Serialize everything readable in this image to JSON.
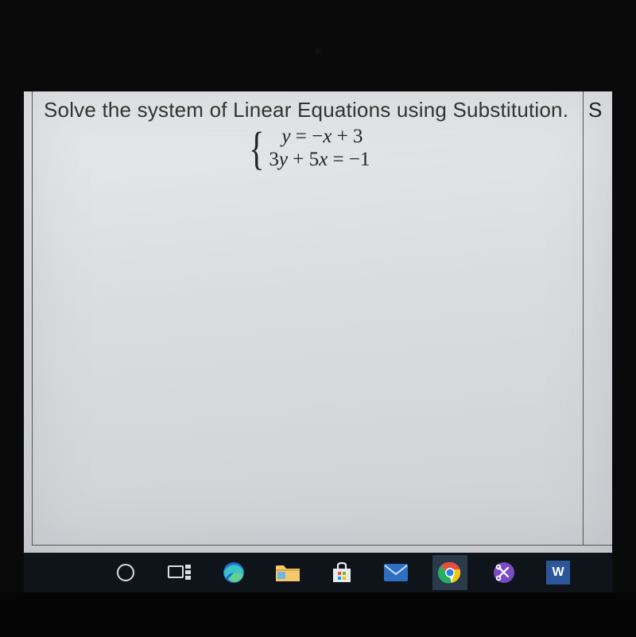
{
  "worksheet": {
    "instruction": "Solve the system of Linear Equations using Substitution.",
    "equation1_html": "<span class='rm'> </span>y <span class='rm'>= −</span>x <span class='rm'>+ 3</span>",
    "equation2_html": "<span class='rm'>3</span>y <span class='rm'>+ 5</span>x <span class='rm'>= −1</span>",
    "right_cell_letter": "S"
  },
  "taskbar": {
    "background": "#0e1419",
    "items": [
      {
        "name": "cortana-circle-icon",
        "type": "svg-circle",
        "stroke": "#d9dde2"
      },
      {
        "name": "task-view-icon",
        "type": "svg-taskview",
        "stroke": "#d9dde2"
      },
      {
        "name": "edge-browser-icon",
        "type": "svg-edge"
      },
      {
        "name": "file-explorer-icon",
        "type": "svg-folder"
      },
      {
        "name": "microsoft-store-icon",
        "type": "svg-store"
      },
      {
        "name": "mail-icon",
        "type": "svg-mail"
      },
      {
        "name": "chrome-browser-icon",
        "type": "svg-chrome",
        "active": true
      },
      {
        "name": "snip-sketch-icon",
        "type": "svg-snip"
      },
      {
        "name": "word-icon",
        "type": "word-tile",
        "letter": "W"
      }
    ]
  },
  "colors": {
    "page_bg": "#0a0a0a",
    "paper_top": "#e8e9eb",
    "paper_bottom": "#cfd0d4",
    "cell_border": "#555555",
    "text": "#222222",
    "edge_teal": "#39c2c9",
    "edge_blue": "#1f6fd0",
    "folder": "#f5c869",
    "store_bag": "#e8eaee",
    "mail_blue": "#2e6fc4",
    "chrome_red": "#e74c3c",
    "chrome_yellow": "#f1c40f",
    "chrome_green": "#27ae60",
    "chrome_blue": "#2f7de1",
    "snip_purple": "#7b4bc4",
    "word_blue": "#2b579a"
  }
}
